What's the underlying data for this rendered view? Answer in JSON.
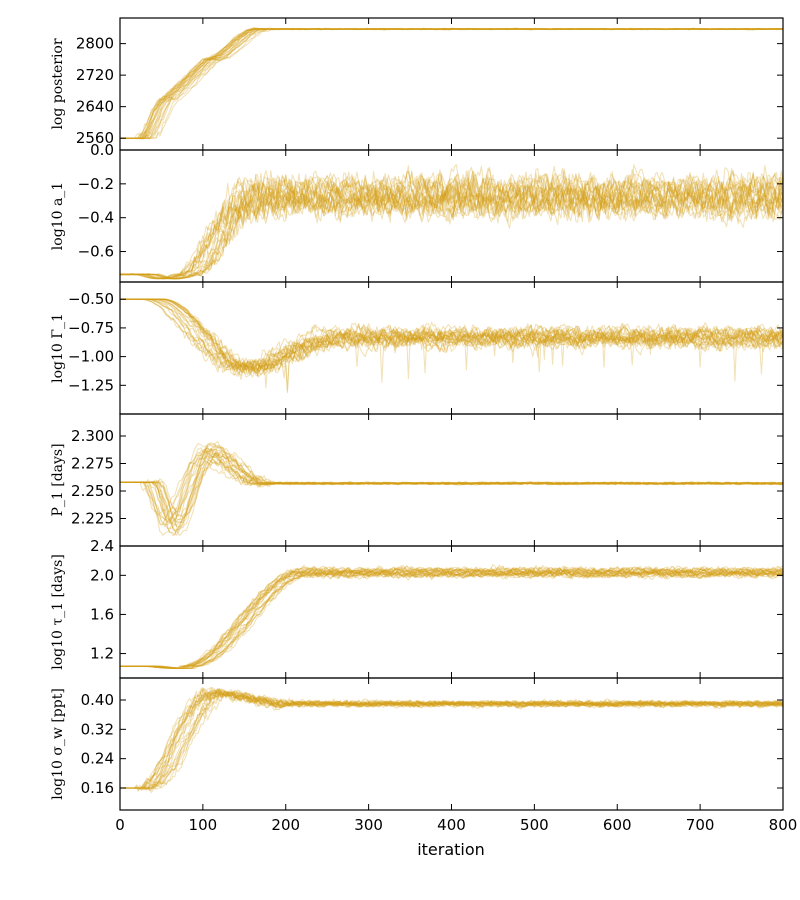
{
  "chart_data": {
    "type": "line",
    "description_kind": "MCMC walker trace plots",
    "xlabel": "iteration",
    "xlim": [
      0,
      800
    ],
    "xticks": [
      0,
      100,
      200,
      300,
      400,
      500,
      600,
      700,
      800
    ],
    "n_walkers": 24,
    "style": {
      "color": "#d4a017",
      "alpha": 0.3,
      "grid": false
    },
    "panels": [
      {
        "id": "logpost",
        "ylabel": "log posterior",
        "ylim": [
          2530,
          2865
        ],
        "yticks": [
          2560,
          2640,
          2720,
          2800
        ],
        "ytick_labels": [
          "2560",
          "2640",
          "2720",
          "2800"
        ],
        "trace": {
          "start": 2560,
          "burn_start": 30,
          "burn_end": 170,
          "plateau": 2837,
          "spread": 2,
          "shape": "stepped-rise",
          "mid_value": 2660,
          "mid_iter": 60,
          "knee_value": 2760,
          "knee_iter": 110
        }
      },
      {
        "id": "a1",
        "ylabel": "log10 a_1",
        "ylim": [
          -0.78,
          0.0
        ],
        "yticks": [
          -0.6,
          -0.4,
          -0.2,
          0.0
        ],
        "ytick_labels": [
          "−0.6",
          "−0.4",
          "−0.2",
          "0.0"
        ],
        "trace": {
          "start": -0.735,
          "dip": -0.76,
          "dip_iter": 60,
          "burn_start": 35,
          "burn_end": 160,
          "plateau": -0.26,
          "spread": 0.12,
          "walker_offset": 0.07
        }
      },
      {
        "id": "Gamma1",
        "ylabel": "log10 Γ_1",
        "ylim": [
          -1.5,
          -0.35
        ],
        "yticks": [
          -1.25,
          -1.0,
          -0.75,
          -0.5
        ],
        "ytick_labels": [
          "−1.25",
          "−1.00",
          "−0.75",
          "−0.50"
        ],
        "trace": {
          "start": -0.5,
          "burn_start": 40,
          "dip": -1.1,
          "dip_iter": 150,
          "burn_end": 260,
          "plateau": -0.82,
          "spread": 0.1,
          "walker_offset": 0.06
        }
      },
      {
        "id": "P1",
        "ylabel": "P_1 [days]",
        "ylim": [
          2.2,
          2.32
        ],
        "yticks": [
          2.225,
          2.25,
          2.275,
          2.3
        ],
        "ytick_labels": [
          "2.225",
          "2.250",
          "2.275",
          "2.300"
        ],
        "trace": {
          "start": 2.258,
          "dip": 2.22,
          "dip_iter": 50,
          "peak": 2.285,
          "peak_iter": 105,
          "burn_end": 170,
          "plateau": 2.257,
          "spread": 0.0015
        }
      },
      {
        "id": "tau1",
        "ylabel": "log10 τ_1 [days]",
        "ylim": [
          0.95,
          2.3
        ],
        "yticks": [
          1.2,
          1.6,
          2.0
        ],
        "ytick_labels": [
          "1.2",
          "1.6",
          "2.0"
        ],
        "extra_label": "2.4",
        "trace": {
          "start": 1.07,
          "dip": 1.05,
          "dip_iter": 60,
          "burn_start": 40,
          "burn_end": 220,
          "plateau": 2.03,
          "spread": 0.05,
          "walker_offset": 0.03
        }
      },
      {
        "id": "sigmaw",
        "ylabel": "log10 σ_w [ppt]",
        "ylim": [
          0.1,
          0.46
        ],
        "yticks": [
          0.16,
          0.24,
          0.32,
          0.4
        ],
        "ytick_labels": [
          "0.16",
          "0.24",
          "0.32",
          "0.40"
        ],
        "trace": {
          "start": 0.16,
          "burn_start": 30,
          "overshoot": 0.42,
          "over_iter": 110,
          "burn_end": 200,
          "plateau": 0.39,
          "spread": 0.012
        }
      }
    ]
  }
}
